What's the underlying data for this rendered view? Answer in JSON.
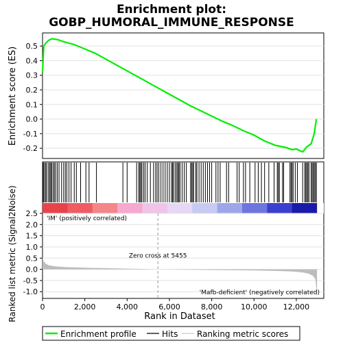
{
  "chart_data": {
    "type": "line",
    "title_lines": [
      "Enrichment plot:",
      "GOBP_HUMORAL_IMMUNE_RESPONSE"
    ],
    "es_panel": {
      "ylabel": "Enrichment score (ES)",
      "ylim": [
        -0.27,
        0.59
      ],
      "yticks": [
        -0.2,
        -0.1,
        0.0,
        0.1,
        0.2,
        0.3,
        0.4,
        0.5
      ],
      "ytick_labels": [
        "-0.2",
        "-0.1",
        "0.0",
        "0.1",
        "0.2",
        "0.3",
        "0.4",
        "0.5"
      ],
      "line_color": "#00ee00",
      "profile": [
        [
          0,
          0.32
        ],
        [
          60,
          0.5
        ],
        [
          150,
          0.52
        ],
        [
          300,
          0.54
        ],
        [
          450,
          0.55
        ],
        [
          700,
          0.545
        ],
        [
          1000,
          0.53
        ],
        [
          1500,
          0.51
        ],
        [
          2000,
          0.48
        ],
        [
          2500,
          0.45
        ],
        [
          3000,
          0.41
        ],
        [
          3500,
          0.37
        ],
        [
          4000,
          0.33
        ],
        [
          4500,
          0.29
        ],
        [
          5000,
          0.25
        ],
        [
          5500,
          0.21
        ],
        [
          6000,
          0.17
        ],
        [
          6500,
          0.13
        ],
        [
          7000,
          0.09
        ],
        [
          7500,
          0.055
        ],
        [
          8000,
          0.02
        ],
        [
          8500,
          -0.015
        ],
        [
          9000,
          -0.045
        ],
        [
          9500,
          -0.08
        ],
        [
          10000,
          -0.11
        ],
        [
          10500,
          -0.15
        ],
        [
          11000,
          -0.18
        ],
        [
          11500,
          -0.195
        ],
        [
          11800,
          -0.21
        ],
        [
          12000,
          -0.205
        ],
        [
          12300,
          -0.225
        ],
        [
          12500,
          -0.19
        ],
        [
          12700,
          -0.17
        ],
        [
          12850,
          -0.1
        ],
        [
          12950,
          0.0
        ]
      ]
    },
    "hits_panel": {
      "positions": [
        10,
        40,
        90,
        150,
        200,
        280,
        340,
        390,
        430,
        500,
        560,
        620,
        700,
        780,
        900,
        1000,
        1080,
        1150,
        1250,
        1350,
        1500,
        1600,
        1800,
        2050,
        2200,
        2550,
        3800,
        4000,
        4450,
        4550,
        4600,
        4650,
        4700,
        4780,
        4850,
        4950,
        5100,
        5250,
        5350,
        5420,
        5500,
        5600,
        5700,
        5800,
        5900,
        6000,
        6100,
        6150,
        6200,
        6280,
        6350,
        6400,
        6450,
        6500,
        6600,
        6700,
        6800,
        7000,
        7050,
        7100,
        7150,
        7250,
        7300,
        7400,
        7500,
        7600,
        7700,
        7800,
        7900,
        8000,
        8200,
        8300,
        8400,
        8700,
        8800,
        9200,
        9300,
        9500,
        9600,
        9800,
        10050,
        10200,
        10350,
        10500,
        10700,
        10950,
        11100,
        11150,
        11200,
        11350,
        11400,
        11700,
        11750,
        11800,
        11850,
        11950,
        12050,
        12300,
        12400,
        12450,
        12500,
        12550,
        12600,
        12700,
        12750,
        12800,
        12850,
        12900,
        12950
      ],
      "band_colors": [
        "#e8434a",
        "#ef5c63",
        "#f4858b",
        "#f7a8cf",
        "#f0c4e8",
        "#e6d8f5",
        "#c7caf2",
        "#9ea6ea",
        "#6f75de",
        "#3b3fd0",
        "#1a1aa8"
      ]
    },
    "metric_panel": {
      "ylabel": "Ranked list metric (Signal2Noise)",
      "xlabel": "Rank in Dataset",
      "ylim": [
        -1.3,
        2.5
      ],
      "yticks": [
        -1.0,
        -0.5,
        0.0,
        0.5,
        1.0,
        1.5,
        2.0,
        2.5
      ],
      "ytick_labels": [
        "-1.0",
        "-0.5",
        "0.0",
        "0.5",
        "1.0",
        "1.5",
        "2.0",
        "2.5"
      ],
      "xlim": [
        0,
        13300
      ],
      "xticks": [
        0,
        2000,
        4000,
        6000,
        8000,
        10000,
        12000
      ],
      "xtick_labels": [
        "0",
        "2,000",
        "4,000",
        "6,000",
        "8,000",
        "10,000",
        "12,000"
      ],
      "fill_color": "#bdbdbd",
      "metric": [
        [
          0,
          0.55
        ],
        [
          50,
          0.38
        ],
        [
          150,
          0.25
        ],
        [
          300,
          0.18
        ],
        [
          600,
          0.13
        ],
        [
          1000,
          0.1
        ],
        [
          2000,
          0.07
        ],
        [
          3000,
          0.05
        ],
        [
          4000,
          0.03
        ],
        [
          5000,
          0.012
        ],
        [
          5455,
          0.0
        ],
        [
          6000,
          -0.01
        ],
        [
          7000,
          -0.02
        ],
        [
          8000,
          -0.03
        ],
        [
          9000,
          -0.04
        ],
        [
          10000,
          -0.05
        ],
        [
          11000,
          -0.07
        ],
        [
          11800,
          -0.1
        ],
        [
          12300,
          -0.14
        ],
        [
          12600,
          -0.2
        ],
        [
          12800,
          -0.3
        ],
        [
          12900,
          -0.45
        ],
        [
          12950,
          -0.85
        ],
        [
          12980,
          -1.2
        ]
      ],
      "zero_cross": 5455,
      "zero_cross_label": "Zero cross at 5455",
      "pos_label": "'IM' (positively correlated)",
      "neg_label": "'Mafb-deficient' (negatively correlated)",
      "pos_color": "#e8192c",
      "neg_color": "#2222cc"
    },
    "legend": {
      "placement": "bottom",
      "items": [
        {
          "label": "Enrichment profile",
          "color": "#00ee00"
        },
        {
          "label": "Hits",
          "color": "#000000"
        },
        {
          "label": "Ranking metric scores",
          "color": "#bdbdbd"
        }
      ]
    }
  }
}
